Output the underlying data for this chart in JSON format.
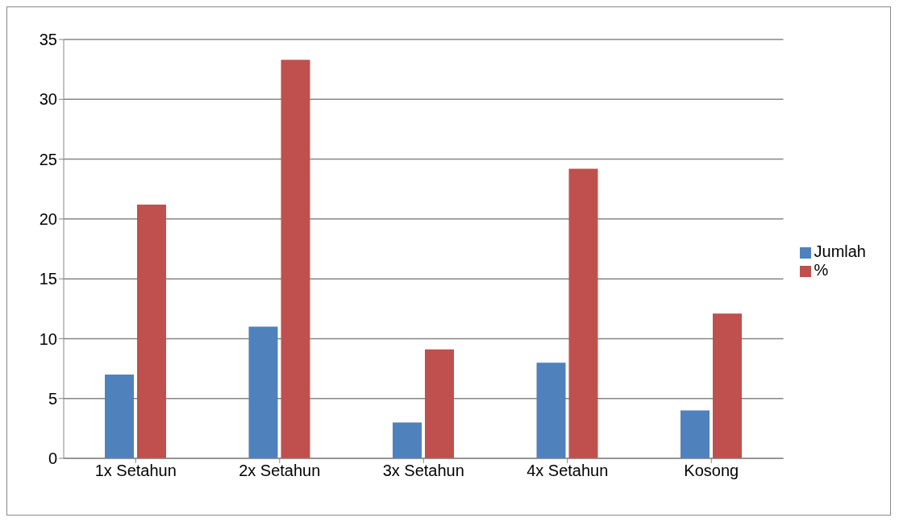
{
  "chart_data": {
    "type": "bar",
    "categories": [
      "1x Setahun",
      "2x Setahun",
      "3x Setahun",
      "4x Setahun",
      "Kosong"
    ],
    "series": [
      {
        "name": "Jumlah",
        "color": "#4f81bd",
        "values": [
          7,
          11,
          3,
          8,
          4
        ]
      },
      {
        "name": "%",
        "color": "#c0504d",
        "values": [
          21.2,
          33.3,
          9.1,
          24.2,
          12.1
        ]
      }
    ],
    "ylim": [
      0,
      35
    ],
    "yticks": [
      0,
      5,
      10,
      15,
      20,
      25,
      30,
      35
    ],
    "grid": "y",
    "legend": "right"
  }
}
